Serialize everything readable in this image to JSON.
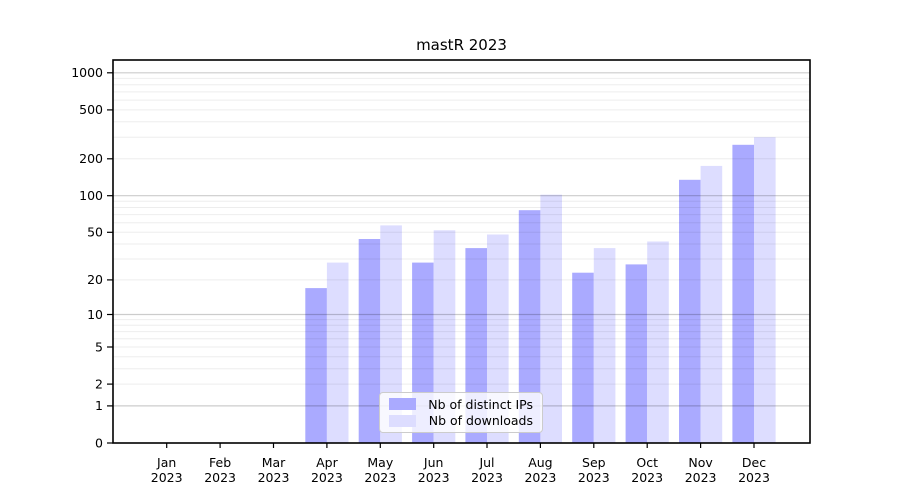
{
  "chart_data": {
    "type": "bar",
    "title": "mastR 2023",
    "categories": [
      "Jan",
      "Feb",
      "Mar",
      "Apr",
      "May",
      "Jun",
      "Jul",
      "Aug",
      "Sep",
      "Oct",
      "Nov",
      "Dec"
    ],
    "year_label": "2023",
    "series": [
      {
        "name": "Nb of distinct IPs",
        "color": "#aaaaff",
        "values": [
          0,
          0,
          0,
          17,
          44,
          28,
          37,
          76,
          23,
          27,
          135,
          260
        ]
      },
      {
        "name": "Nb of downloads",
        "color": "#ddddff",
        "values": [
          0,
          0,
          0,
          28,
          57,
          52,
          48,
          102,
          37,
          42,
          175,
          300
        ]
      }
    ],
    "y_ticks": [
      0,
      1,
      2,
      5,
      10,
      20,
      50,
      100,
      200,
      500,
      1000
    ],
    "y_scale": "log1p",
    "ylim": [
      0,
      1000
    ],
    "grid": "horizontal",
    "legend_position": "bottom-center",
    "colors": {
      "grid_minor": "#ebebeb",
      "grid_major": "#cccccc",
      "axis": "#000000",
      "legend_border": "#cccccc"
    }
  }
}
